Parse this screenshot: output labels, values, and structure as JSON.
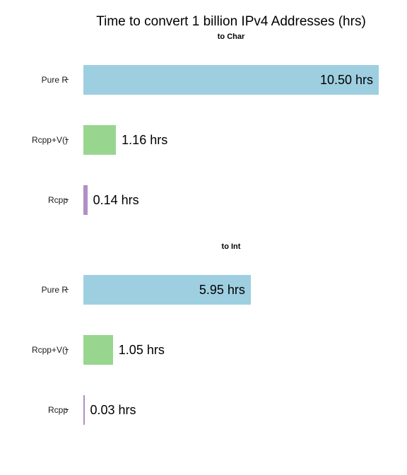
{
  "chart_data": {
    "type": "bar",
    "orientation": "horizontal",
    "title": "Time to convert 1 billion IPv4 Addresses (hrs)",
    "xlabel": "",
    "ylabel": "",
    "grid": false,
    "facets": [
      {
        "label": "to Char",
        "categories": [
          "Pure R",
          "Rcpp+V()",
          "Rcpp"
        ],
        "values": [
          10.5,
          1.16,
          0.14
        ],
        "value_labels": [
          "10.50 hrs",
          "1.16 hrs",
          "0.14 hrs"
        ]
      },
      {
        "label": "to Int",
        "categories": [
          "Pure R",
          "Rcpp+V()",
          "Rcpp"
        ],
        "values": [
          5.95,
          1.05,
          0.03
        ],
        "value_labels": [
          "5.95 hrs",
          "1.05 hrs",
          "0.03 hrs"
        ]
      }
    ],
    "xlim": [
      0,
      10.5
    ],
    "colors": {
      "Pure R": "#9ecfe0",
      "Rcpp+V()": "#98d68f",
      "Rcpp": "#b08fc7"
    }
  }
}
